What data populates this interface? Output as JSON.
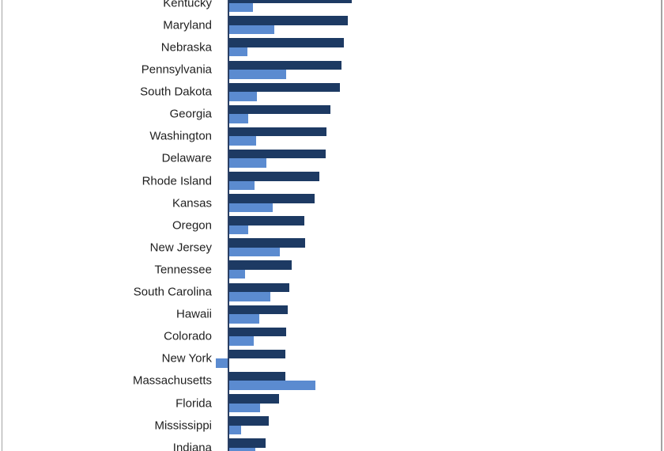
{
  "chart_data": {
    "type": "bar",
    "orientation": "horizontal",
    "title_visible": false,
    "axis_tick_labels_visible": false,
    "grid": false,
    "legend": false,
    "value_unit": "px-from-baseline (no numeric axis visible in cropped view)",
    "categories": [
      "Kentucky",
      "Maryland",
      "Nebraska",
      "Pennsylvania",
      "South Dakota",
      "Georgia",
      "Washington",
      "Delaware",
      "Rhode Island",
      "Kansas",
      "Oregon",
      "New Jersey",
      "Tennessee",
      "South Carolina",
      "Hawaii",
      "Colorado",
      "New York",
      "Massachusetts",
      "Florida",
      "Mississippi",
      "Indiana"
    ],
    "series": [
      {
        "name": "series-1-dark-blue",
        "color": "#1d3a63",
        "values": [
          155,
          150,
          145,
          142,
          140,
          128,
          123,
          122,
          114,
          108,
          95,
          96,
          79,
          76,
          74,
          72,
          71,
          71,
          63,
          50,
          46
        ]
      },
      {
        "name": "series-2-light-blue",
        "color": "#5b8bd0",
        "values": [
          30,
          57,
          23,
          72,
          35,
          24,
          34,
          47,
          32,
          55,
          24,
          64,
          20,
          52,
          38,
          31,
          -15,
          109,
          39,
          15,
          33
        ]
      }
    ],
    "style": {
      "background": "#ffffff",
      "plot_border_color": "#a3a3a3",
      "axis_line_color": "#2b3f63",
      "label_color": "#1f1f1f"
    }
  }
}
